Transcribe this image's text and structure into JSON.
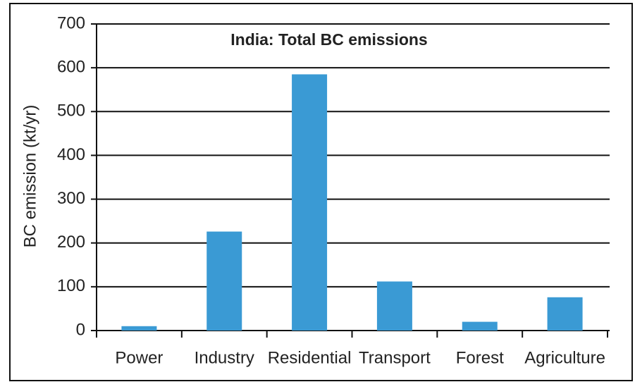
{
  "chart_data": {
    "type": "bar",
    "title": "India: Total BC emissions",
    "y_label": "BC emission (kt/yr)",
    "categories": [
      "Power",
      "Industry",
      "Residential",
      "Transport",
      "Forest",
      "Agriculture"
    ],
    "values": [
      10,
      226,
      585,
      112,
      20,
      76
    ],
    "color": "#3a9ad4",
    "ylim": [
      0,
      700
    ],
    "yticks": [
      0,
      100,
      200,
      300,
      400,
      500,
      600,
      700
    ],
    "grid": true
  }
}
